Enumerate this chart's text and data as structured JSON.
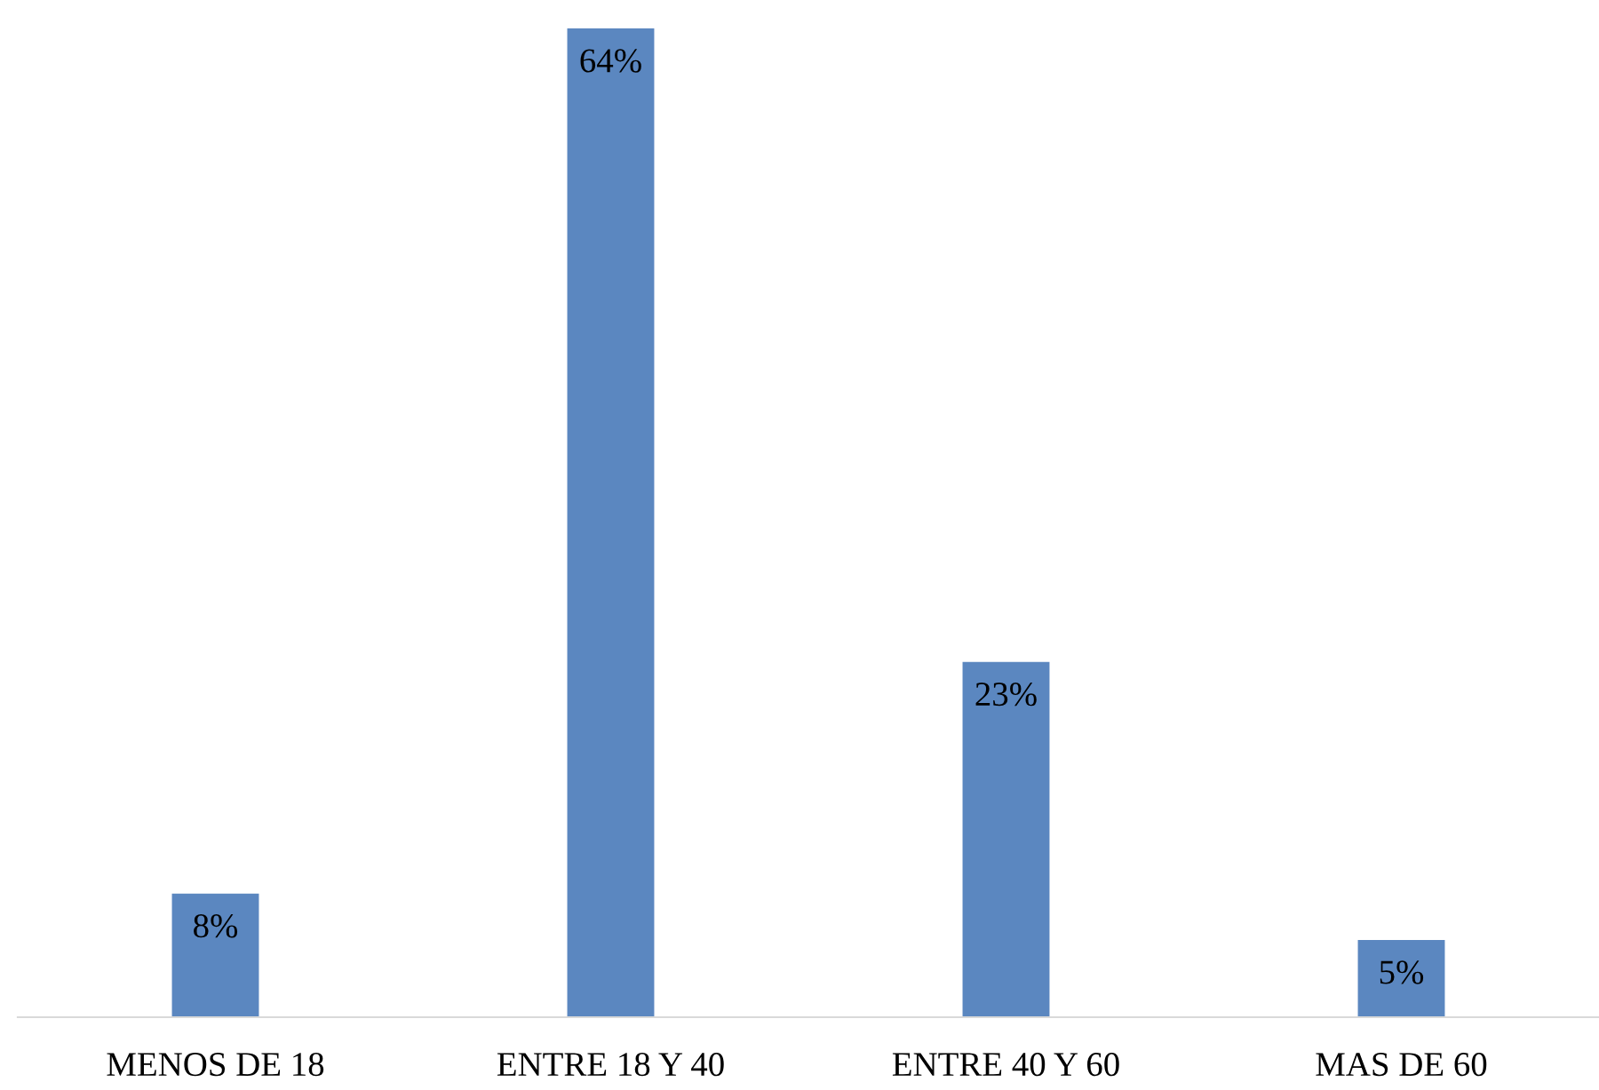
{
  "chart_data": {
    "type": "bar",
    "categories": [
      "MENOS DE 18",
      "ENTRE 18 Y 40",
      "ENTRE 40 Y 60",
      "MAS DE 60"
    ],
    "values": [
      8,
      64,
      23,
      5
    ],
    "value_labels": [
      "8%",
      "64%",
      "23%",
      "5%"
    ],
    "color": "#5b87c0",
    "grid": false,
    "legend": false
  }
}
